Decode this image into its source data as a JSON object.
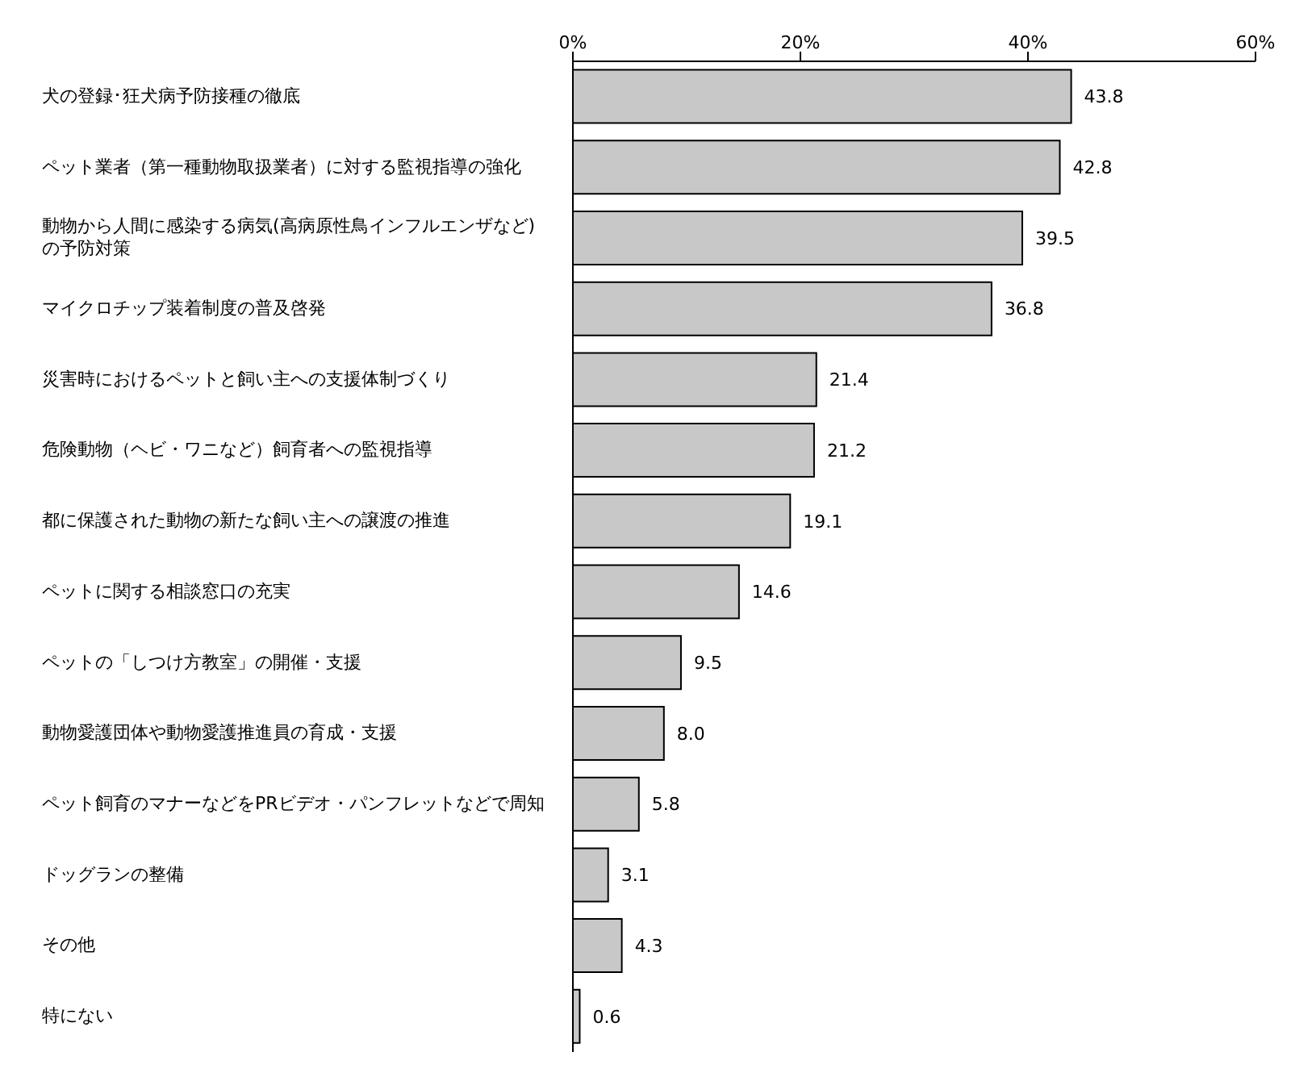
{
  "chart_data": {
    "type": "bar",
    "orientation": "horizontal",
    "categories": [
      "犬の登録･狂犬病予防接種の徹底",
      "ペット業者（第一種動物取扱業者）に対する監視指導の強化",
      "動物から人間に感染する病気(高病原性鳥インフルエンザなど)の予防対策",
      "マイクロチップ装着制度の普及啓発",
      "災害時におけるペットと飼い主への支援体制づくり",
      "危険動物（ヘビ・ワニなど）飼育者への監視指導",
      "都に保護された動物の新たな飼い主への譲渡の推進",
      "ペットに関する相談窓口の充実",
      "ペットの「しつけ方教室」の開催・支援",
      "動物愛護団体や動物愛護推進員の育成・支援",
      "ペット飼育のマナーなどをPRビデオ・パンフレットなどで周知",
      "ドッグランの整備",
      "その他",
      "特にない"
    ],
    "values": [
      43.8,
      42.8,
      39.5,
      36.8,
      21.4,
      21.2,
      19.1,
      14.6,
      9.5,
      8.0,
      5.8,
      3.1,
      4.3,
      0.6
    ],
    "value_labels": [
      "43.8",
      "42.8",
      "39.5",
      "36.8",
      "21.4",
      "21.2",
      "19.1",
      "14.6",
      "9.5",
      "8.0",
      "5.8",
      "3.1",
      "4.3",
      "0.6"
    ],
    "color": "#c8c8c8",
    "xlim": [
      0,
      60
    ],
    "xticks": [
      {
        "value": 0,
        "label": "0%"
      },
      {
        "value": 20,
        "label": "20%"
      },
      {
        "value": 40,
        "label": "40%"
      },
      {
        "value": 60,
        "label": "60%"
      }
    ],
    "grid": false,
    "legend": false
  }
}
